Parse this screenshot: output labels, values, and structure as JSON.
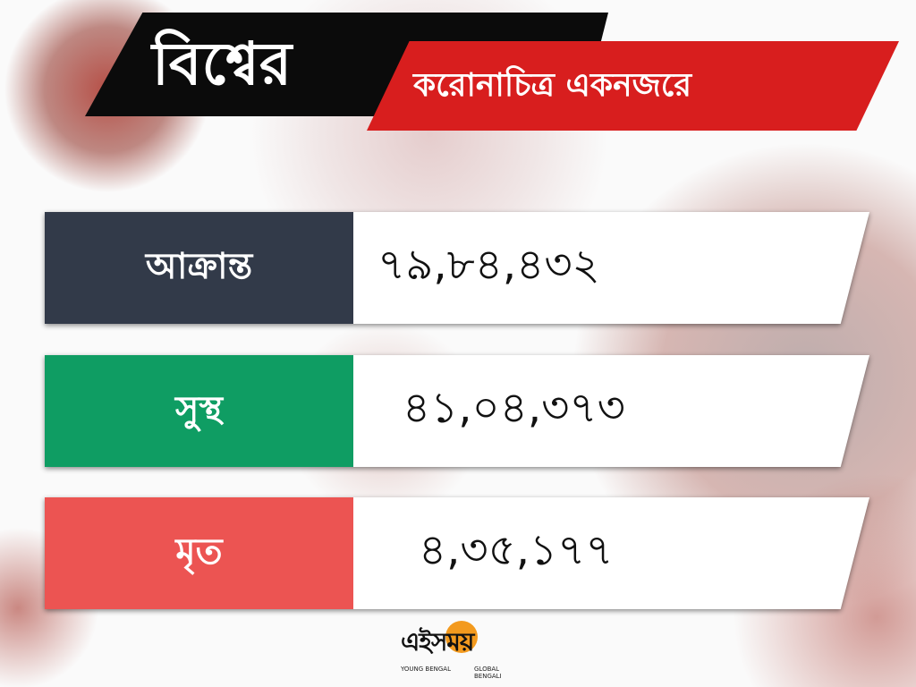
{
  "header": {
    "title": "বিশ্বের",
    "subtitle": "করোনাচিত্র একনজরে"
  },
  "rows": [
    {
      "label": "আক্রান্ত",
      "value": "৭৯,৮৪,৪৩২",
      "color": "#323a49"
    },
    {
      "label": "সুস্থ",
      "value": "৪১,০৪,৩৭৩",
      "color": "#0f9d63"
    },
    {
      "label": "মৃত",
      "value": "৪,৩৫,১৭৭",
      "color": "#ec5452"
    }
  ],
  "logo": {
    "name": "এইসময়",
    "tagline_left": "YOUNG BENGAL",
    "tagline_right": "GLOBAL BENGALI",
    "accent": "#f39a1e"
  }
}
